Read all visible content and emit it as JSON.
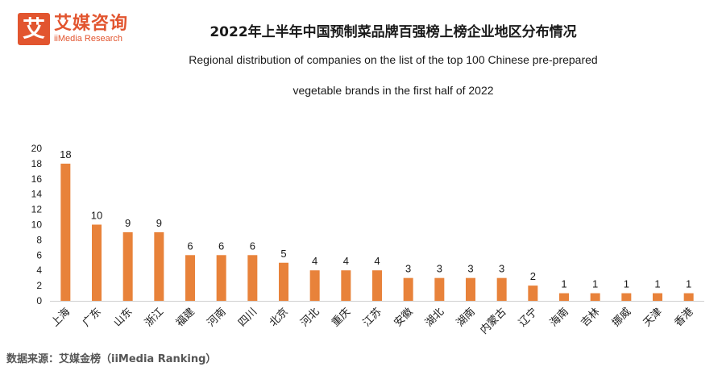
{
  "logo": {
    "mark": "艾",
    "name_cn": "艾媒咨询",
    "name_en": "iiMedia Research"
  },
  "header": {
    "title_cn": "2022年上半年中国预制菜品牌百强榜上榜企业地区分布情况",
    "title_en_line1": "Regional distribution of companies on the list of the top 100 Chinese pre-prepared",
    "title_en_line2": "vegetable brands in the first half of 2022"
  },
  "footer": {
    "source": "数据来源：艾媒金榜（iiMedia Ranking）"
  },
  "colors": {
    "bar": "#e8823a",
    "brand": "#e2552f",
    "axis": "#d0d0d0"
  },
  "chart_data": {
    "type": "bar",
    "categories": [
      "上海",
      "广东",
      "山东",
      "浙江",
      "福建",
      "河南",
      "四川",
      "北京",
      "河北",
      "重庆",
      "江苏",
      "安徽",
      "湖北",
      "湖南",
      "内蒙古",
      "辽宁",
      "海南",
      "吉林",
      "挪威",
      "天津",
      "香港"
    ],
    "values": [
      18,
      10,
      9,
      9,
      6,
      6,
      6,
      5,
      4,
      4,
      4,
      3,
      3,
      3,
      3,
      2,
      1,
      1,
      1,
      1,
      1
    ],
    "yticks": [
      0,
      2,
      4,
      6,
      8,
      10,
      12,
      14,
      16,
      18,
      20
    ],
    "ylim": [
      0,
      20
    ],
    "data_labels": true,
    "legend": "none",
    "grid": false
  }
}
